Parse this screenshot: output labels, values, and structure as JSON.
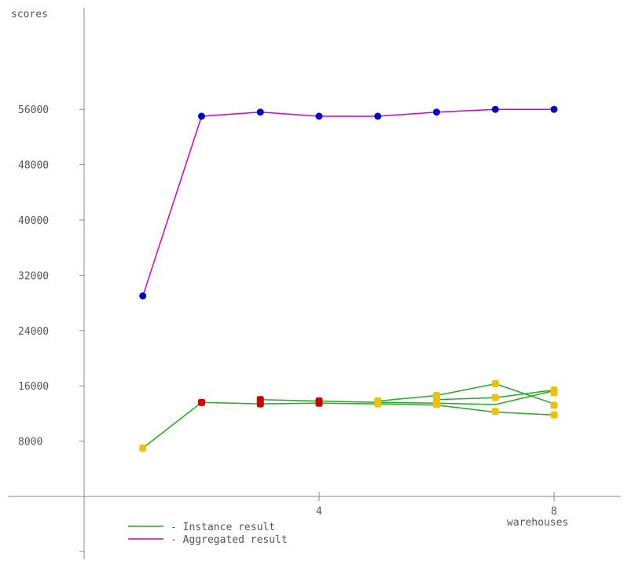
{
  "chart_data": {
    "type": "line",
    "ylabel": "scores",
    "xlabel": "warehouses",
    "x_ticks": [
      4,
      8
    ],
    "y_ticks": [
      8000,
      16000,
      24000,
      32000,
      40000,
      48000,
      56000
    ],
    "xlim": [
      0,
      9
    ],
    "ylim": [
      0,
      70000
    ],
    "grid": false,
    "legend_position": "bottom-left",
    "series": [
      {
        "name": "Aggregated result",
        "color": "#cc00cc",
        "marker_color": "#0000cc",
        "x": [
          1,
          2,
          3,
          4,
          5,
          6,
          7,
          8
        ],
        "values": [
          29000,
          55000,
          55600,
          55000,
          55000,
          55600,
          56000,
          56000
        ]
      },
      {
        "name": "Instance result",
        "color": "#22aa22",
        "x": [
          1,
          2,
          3,
          4,
          5,
          6,
          7,
          8
        ],
        "values": [
          7000,
          13600,
          13400,
          13500,
          13400,
          13200,
          12200,
          11800
        ]
      },
      {
        "name": "",
        "color": "#22aa22",
        "x": [
          3,
          4,
          5,
          6,
          7,
          8
        ],
        "values": [
          14000,
          13800,
          13600,
          13500,
          13300,
          15300
        ]
      },
      {
        "name": "",
        "color": "#22aa22",
        "x": [
          5,
          6,
          7,
          8
        ],
        "values": [
          13800,
          14600,
          16300,
          13400
        ]
      },
      {
        "name": "",
        "color": "#22aa22",
        "x": [
          6,
          7,
          8
        ],
        "values": [
          14000,
          14300,
          15400
        ]
      }
    ],
    "instance_markers": [
      {
        "x": 1,
        "y": 7000,
        "color": "#f0c000"
      },
      {
        "x": 2,
        "y": 13600,
        "color": "#cc0000"
      },
      {
        "x": 3,
        "y": 14000,
        "color": "#cc0000"
      },
      {
        "x": 3,
        "y": 13400,
        "color": "#cc0000"
      },
      {
        "x": 4,
        "y": 13800,
        "color": "#cc0000"
      },
      {
        "x": 4,
        "y": 13500,
        "color": "#cc0000"
      },
      {
        "x": 5,
        "y": 13800,
        "color": "#f0c000"
      },
      {
        "x": 5,
        "y": 13400,
        "color": "#f0c000"
      },
      {
        "x": 6,
        "y": 14600,
        "color": "#f0c000"
      },
      {
        "x": 6,
        "y": 14000,
        "color": "#f0c000"
      },
      {
        "x": 6,
        "y": 13300,
        "color": "#f0c000"
      },
      {
        "x": 7,
        "y": 16300,
        "color": "#f0c000"
      },
      {
        "x": 7,
        "y": 14300,
        "color": "#f0c000"
      },
      {
        "x": 7,
        "y": 12300,
        "color": "#f0c000"
      },
      {
        "x": 8,
        "y": 15400,
        "color": "#f0c000"
      },
      {
        "x": 8,
        "y": 15000,
        "color": "#f0c000"
      },
      {
        "x": 8,
        "y": 13200,
        "color": "#f0c000"
      },
      {
        "x": 8,
        "y": 11800,
        "color": "#f0c000"
      }
    ],
    "legend": [
      {
        "label": "- Instance result",
        "color": "#22aa22"
      },
      {
        "label": "- Aggregated result",
        "color": "#cc00cc"
      }
    ]
  }
}
